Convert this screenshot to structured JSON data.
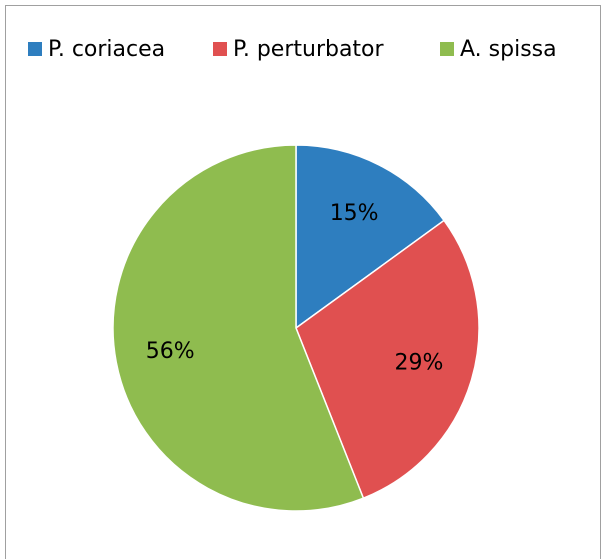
{
  "chart_data": {
    "type": "pie",
    "categories": [
      "P. coriacea",
      "P. perturbator",
      "A. spissa"
    ],
    "values": [
      15,
      29,
      56
    ],
    "value_labels": [
      "15%",
      "29%",
      "56%"
    ],
    "colors": [
      "#2e7ebf",
      "#e05050",
      "#8fbc4f"
    ],
    "legend": "top"
  }
}
